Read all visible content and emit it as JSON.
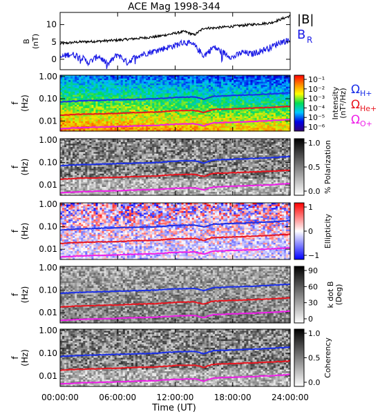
{
  "title": "ACE Mag 1998-344",
  "colors": {
    "B_total": "#000000",
    "B_R": "#1a1ae6",
    "omega_H": "#1a2ee8",
    "omega_He": "#e8141e",
    "omega_O": "#ee1ee8"
  },
  "chart_data": [
    {
      "type": "line",
      "panel": "field",
      "ylabel": "B (nT)",
      "yticks": [
        0,
        5,
        10
      ],
      "ylim": [
        -3,
        13.5
      ],
      "xlim": [
        0,
        24
      ],
      "legend": [
        "|B|",
        "B_R"
      ],
      "legend_placement": "right",
      "series": [
        {
          "name": "|B|",
          "x": [
            0,
            2,
            4,
            6,
            8,
            10,
            12,
            13,
            14,
            15,
            16,
            18,
            20,
            22,
            23,
            24
          ],
          "values": [
            4.5,
            5.0,
            5.2,
            5.5,
            6.0,
            6.5,
            7.5,
            8.0,
            7.0,
            9.0,
            9.0,
            9.5,
            10.0,
            10.5,
            11.5,
            12.5
          ]
        },
        {
          "name": "B_R",
          "x": [
            0,
            1,
            2,
            3,
            4,
            5,
            6,
            7,
            8,
            10,
            12,
            13,
            14,
            15,
            16,
            17,
            18,
            19,
            20,
            22,
            23,
            24
          ],
          "values": [
            0.5,
            1.5,
            1.0,
            -1.0,
            1.0,
            -1.5,
            1.5,
            -1.0,
            1.0,
            2.5,
            4.0,
            5.0,
            4.0,
            1.0,
            3.5,
            2.0,
            0.5,
            2.0,
            1.5,
            3.5,
            5.0,
            5.5
          ]
        }
      ]
    },
    {
      "type": "heatmap",
      "panel": "intensity",
      "ylabel": "f (Hz)",
      "yticks": [
        "1.00",
        "0.10",
        "0.01"
      ],
      "yscale": "log",
      "colorbar": {
        "label": "Intensity (nT²/Hz)",
        "ticks": [
          "10⁻¹",
          "10⁻²",
          "10⁻³",
          "10⁻⁴",
          "10⁻⁵",
          "10⁻⁶"
        ],
        "scale": "log",
        "palette": "rainbow"
      },
      "legend": [
        "Ω_H+",
        "Ω_He+",
        "Ω_O+"
      ]
    },
    {
      "type": "heatmap",
      "panel": "polarization",
      "ylabel": "f (Hz)",
      "yticks": [
        "1.00",
        "0.10",
        "0.01"
      ],
      "colorbar": {
        "label": "% Polarization",
        "ticks": [
          "1.0",
          "0.5",
          "0.0"
        ],
        "palette": "grayscale"
      }
    },
    {
      "type": "heatmap",
      "panel": "ellipticity",
      "ylabel": "f (Hz)",
      "yticks": [
        "1.00",
        "0.10",
        "0.01"
      ],
      "colorbar": {
        "label": "Ellipticity",
        "ticks": [
          "1",
          "0",
          "−1"
        ],
        "palette": "blue-white-red"
      }
    },
    {
      "type": "heatmap",
      "panel": "wave_normal_angle",
      "ylabel": "f (Hz)",
      "yticks": [
        "1.00",
        "0.10",
        "0.01"
      ],
      "colorbar": {
        "label": "k dot B (Deg)",
        "ticks": [
          "90",
          "60",
          "30",
          "0"
        ],
        "palette": "grayscale"
      }
    },
    {
      "type": "heatmap",
      "panel": "coherency",
      "ylabel": "f (Hz)",
      "yticks": [
        "1.00",
        "0.10",
        "0.01"
      ],
      "colorbar": {
        "label": "Coherency",
        "ticks": [
          "1.0",
          "0.5",
          "0.0"
        ],
        "palette": "grayscale"
      }
    }
  ],
  "gyrofrequency_lines": {
    "x": [
      0,
      2,
      4,
      6,
      8,
      10,
      12,
      14,
      15,
      16,
      18,
      20,
      22,
      24
    ],
    "H_plus_hz": [
      0.072,
      0.08,
      0.085,
      0.09,
      0.095,
      0.1,
      0.115,
      0.12,
      0.095,
      0.13,
      0.14,
      0.15,
      0.165,
      0.185
    ],
    "He_plus_hz": [
      0.018,
      0.02,
      0.021,
      0.022,
      0.024,
      0.025,
      0.029,
      0.03,
      0.024,
      0.033,
      0.035,
      0.038,
      0.041,
      0.046
    ],
    "O_plus_hz": [
      0.0045,
      0.005,
      0.0053,
      0.0056,
      0.006,
      0.0063,
      0.0072,
      0.0075,
      0.006,
      0.0082,
      0.0088,
      0.0094,
      0.0103,
      0.0116
    ]
  },
  "x_axis": {
    "label": "Time (UT)",
    "ticks": [
      "00:00:00",
      "06:00:00",
      "12:00:00",
      "18:00:00",
      "24:00:00"
    ],
    "range_hours": [
      0,
      24
    ]
  },
  "labels": {
    "B_axis_name": "B",
    "B_axis_unit": "(nT)",
    "f_axis_name": "f",
    "f_axis_unit": "(Hz)",
    "legend_Btot": "|B|",
    "legend_BR_main": "B",
    "legend_BR_sub": "R",
    "omega_symbol": "Ω",
    "omega_H_sub": "H+",
    "omega_He_sub": "He+",
    "omega_O_sub": "O+",
    "cb1_name": "Intensity",
    "cb1_unit": "(nT²/Hz)",
    "cb2_name": "% Polarization",
    "cb3_name": "Ellipticity",
    "cb4_name": "k dot B",
    "cb4_unit": "(Deg)",
    "cb6_name": "Coherency"
  }
}
